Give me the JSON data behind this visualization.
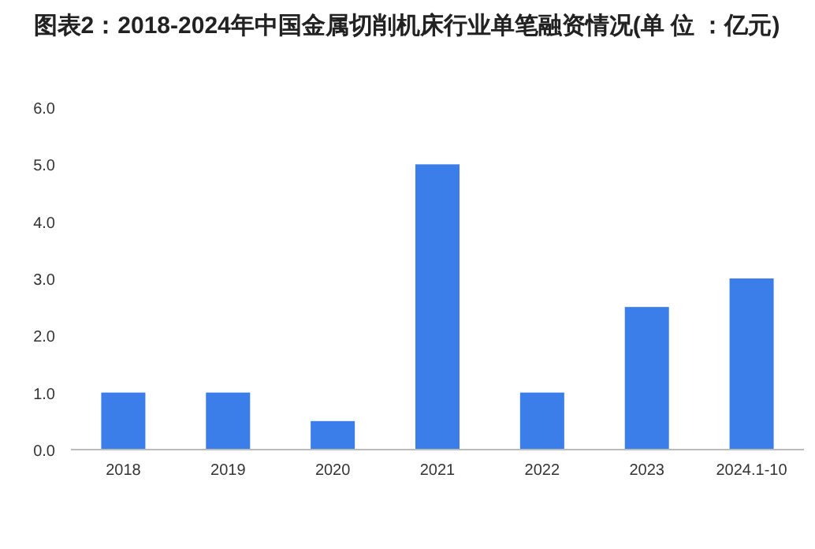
{
  "chart_data": {
    "type": "bar",
    "title": "图表2：2018-2024年中国金属切削机床行业单笔融资情况(单 位 ：亿元)",
    "categories": [
      "2018",
      "2019",
      "2020",
      "2021",
      "2022",
      "2023",
      "2024.1-10"
    ],
    "values": [
      1,
      1,
      0.5,
      5,
      1,
      2.5,
      3
    ],
    "color": "#3b7ee9",
    "ylim": [
      0,
      6
    ],
    "yticks": [
      {
        "value": 0,
        "label": "0.0"
      },
      {
        "value": 1,
        "label": "1.0"
      },
      {
        "value": 2,
        "label": "2.0"
      },
      {
        "value": 3,
        "label": "3.0"
      },
      {
        "value": 4,
        "label": "4.0"
      },
      {
        "value": 5,
        "label": "5.0"
      },
      {
        "value": 6,
        "label": "6.0"
      }
    ],
    "grid": false
  }
}
